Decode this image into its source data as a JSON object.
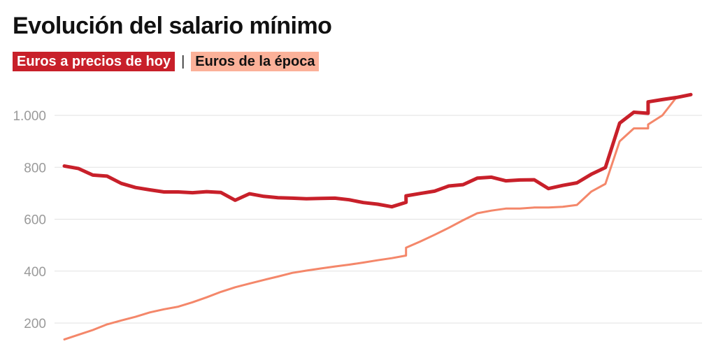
{
  "title": "Evolución del salario mínimo",
  "legend": {
    "separator": "|",
    "items": [
      {
        "label": "Euros a precios de hoy",
        "bg": "#c8202a",
        "text_color": "#ffffff"
      },
      {
        "label": "Euros de la época",
        "bg": "#fbb199",
        "text_color": "#111111"
      }
    ]
  },
  "chart_data": {
    "type": "line",
    "x_range": [
      0,
      45
    ],
    "ylim": [
      150,
      1100
    ],
    "yticks": [
      200,
      400,
      600,
      800,
      1000
    ],
    "ytick_labels": [
      "200",
      "400",
      "600",
      "800",
      "1.000"
    ],
    "grid": true,
    "series": [
      {
        "name": "Euros a precios de hoy",
        "color": "#c8202a",
        "points": [
          [
            0,
            805
          ],
          [
            1,
            795
          ],
          [
            2,
            770
          ],
          [
            3,
            766
          ],
          [
            4,
            738
          ],
          [
            5,
            722
          ],
          [
            6,
            713
          ],
          [
            7,
            705
          ],
          [
            8,
            705
          ],
          [
            9,
            702
          ],
          [
            10,
            706
          ],
          [
            11,
            703
          ],
          [
            12,
            673
          ],
          [
            13,
            698
          ],
          [
            14,
            688
          ],
          [
            15,
            683
          ],
          [
            16,
            681
          ],
          [
            17,
            679
          ],
          [
            18,
            680
          ],
          [
            19,
            681
          ],
          [
            20,
            675
          ],
          [
            21,
            664
          ],
          [
            22,
            658
          ],
          [
            23,
            648
          ],
          [
            24,
            665
          ],
          [
            24,
            690
          ],
          [
            25,
            699
          ],
          [
            26,
            708
          ],
          [
            27,
            728
          ],
          [
            28,
            733
          ],
          [
            29,
            758
          ],
          [
            30,
            762
          ],
          [
            31,
            748
          ],
          [
            32,
            751
          ],
          [
            33,
            752
          ],
          [
            34,
            718
          ],
          [
            35,
            730
          ],
          [
            36,
            740
          ],
          [
            37,
            773
          ],
          [
            38,
            799
          ],
          [
            39,
            970
          ],
          [
            40,
            1012
          ],
          [
            41,
            1008
          ],
          [
            41,
            1052
          ],
          [
            42,
            1061
          ],
          [
            43,
            1069
          ],
          [
            44,
            1080
          ]
        ]
      },
      {
        "name": "Euros de la época",
        "color": "#f4876a",
        "points": [
          [
            0,
            137
          ],
          [
            1,
            155
          ],
          [
            2,
            173
          ],
          [
            3,
            195
          ],
          [
            4,
            210
          ],
          [
            5,
            224
          ],
          [
            6,
            241
          ],
          [
            7,
            253
          ],
          [
            8,
            263
          ],
          [
            9,
            280
          ],
          [
            10,
            299
          ],
          [
            11,
            320
          ],
          [
            12,
            338
          ],
          [
            13,
            352
          ],
          [
            14,
            366
          ],
          [
            15,
            379
          ],
          [
            16,
            393
          ],
          [
            17,
            402
          ],
          [
            18,
            410
          ],
          [
            19,
            418
          ],
          [
            20,
            425
          ],
          [
            21,
            433
          ],
          [
            22,
            442
          ],
          [
            23,
            450
          ],
          [
            24,
            460
          ],
          [
            24,
            490
          ],
          [
            25,
            514
          ],
          [
            26,
            540
          ],
          [
            27,
            567
          ],
          [
            28,
            596
          ],
          [
            29,
            623
          ],
          [
            30,
            633
          ],
          [
            31,
            641
          ],
          [
            32,
            641
          ],
          [
            33,
            645
          ],
          [
            34,
            645
          ],
          [
            35,
            648
          ],
          [
            36,
            655
          ],
          [
            37,
            706
          ],
          [
            38,
            736
          ],
          [
            39,
            900
          ],
          [
            40,
            950
          ],
          [
            41,
            950
          ],
          [
            41,
            965
          ],
          [
            42,
            1000
          ],
          [
            43,
            1070
          ],
          [
            44,
            1080
          ]
        ]
      }
    ]
  }
}
